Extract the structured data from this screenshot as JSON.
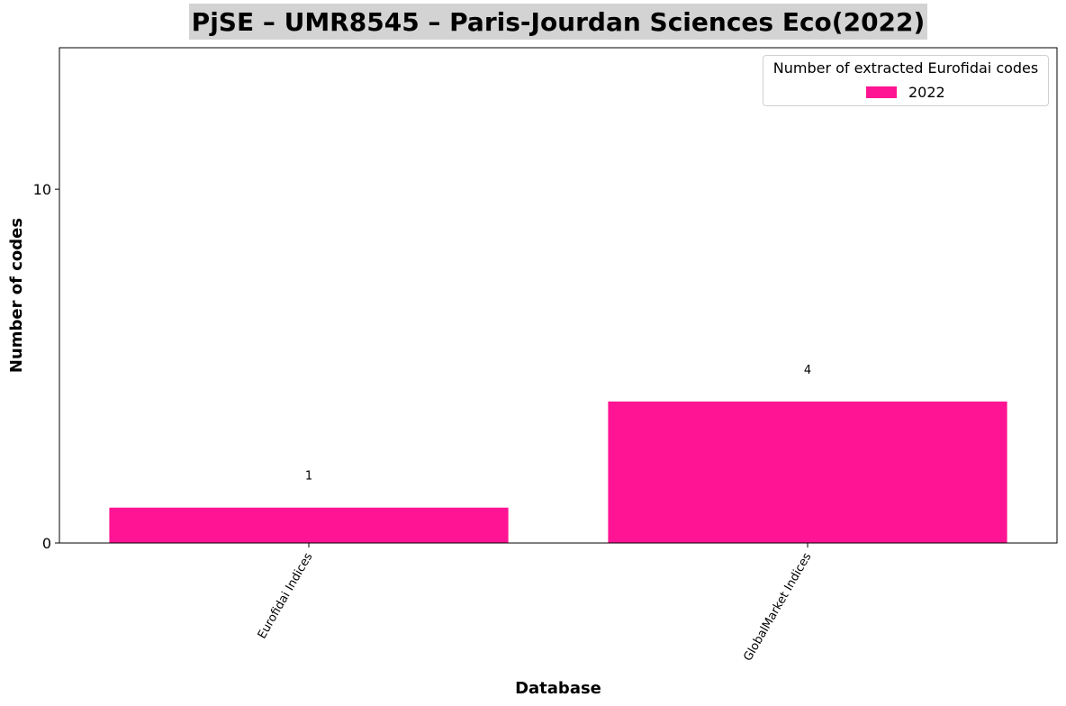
{
  "chart_data": {
    "type": "bar",
    "title": "PjSE – UMR8545 – Paris-Jourdan Sciences Eco(2022)",
    "xlabel": "Database",
    "ylabel": "Number of codes",
    "categories": [
      "Eurofidai Indices",
      "GlobalMarket Indices"
    ],
    "series": [
      {
        "name": "2022",
        "values": [
          1,
          4
        ],
        "color": "#ff1493"
      }
    ],
    "data_labels": [
      "1",
      "4"
    ],
    "y_ticks": [
      0,
      10
    ],
    "y_tick_labels": [
      "0",
      "10"
    ],
    "ylim": [
      0,
      14
    ],
    "grid": false,
    "legend": {
      "title": "Number of extracted Eurofidai codes",
      "placement": "top-right"
    }
  }
}
